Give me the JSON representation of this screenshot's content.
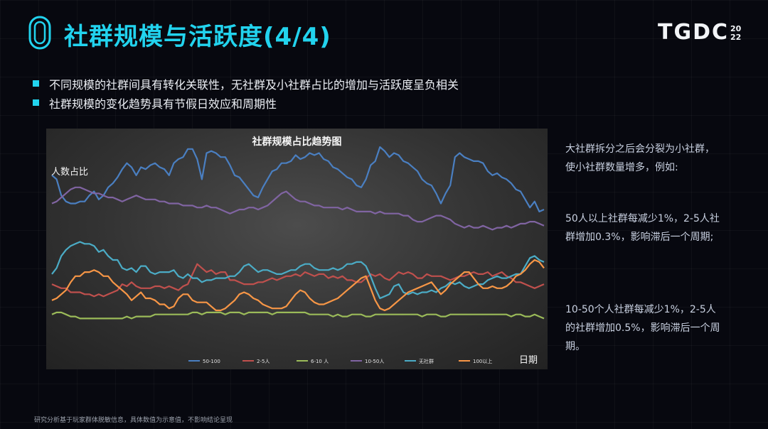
{
  "slide": {
    "title": "社群规模与活跃度(4/4)",
    "logo_text": "TGDC",
    "logo_year_top": "20",
    "logo_year_bottom": "22",
    "bullets": [
      "不同规模的社群间具有转化关联性，无社群及小社群占比的增加与活跃度呈负相关",
      "社群规模的变化趋势具有节假日效应和周期性"
    ],
    "side_notes": [
      "大社群拆分之后会分裂为小社群，使小社群数量增多，例如:",
      "50人以上社群每减少1%，2-5人社群增加0.3%，影响滞后一个周期;",
      "10-50个人社群每减少1%，2-5人的社群增加0.5%，影响滞后一个周期。"
    ],
    "footer": "研究分析基于玩家群体脱敏信息，具体数值为示意值，不影响结论呈现"
  },
  "chart_data": {
    "type": "line",
    "title": "社群规模占比趋势图",
    "ylabel": "人数占比",
    "xlabel": "日期",
    "ylim": [
      0,
      100
    ],
    "grid": false,
    "legend_position": "bottom",
    "series": [
      {
        "name": "50-100",
        "color": "#4a7fc1",
        "values": [
          86,
          84,
          76,
          73,
          72,
          72,
          73,
          73,
          76,
          78,
          74,
          76,
          80,
          82,
          85,
          89,
          92,
          90,
          86,
          90,
          89,
          91,
          92,
          90,
          89,
          86,
          92,
          94,
          95,
          99,
          99,
          94,
          84,
          97,
          98,
          97,
          95,
          95,
          91,
          86,
          85,
          82,
          79,
          76,
          75,
          80,
          84,
          88,
          89,
          92,
          92,
          93,
          96,
          94,
          95,
          97,
          96,
          97,
          94,
          93,
          90,
          89,
          87,
          85,
          84,
          81,
          80,
          84,
          91,
          93,
          100,
          98,
          95,
          97,
          96,
          93,
          92,
          90,
          88,
          84,
          82,
          81,
          77,
          72,
          77,
          81,
          95,
          97,
          95,
          94,
          93,
          93,
          92,
          88,
          86,
          87,
          85,
          84,
          82,
          79,
          78,
          74,
          70,
          73,
          68,
          69
        ]
      },
      {
        "name": "2-5人",
        "color": "#c0504d",
        "values": [
          32,
          31,
          30,
          30,
          28,
          28,
          28,
          27,
          27,
          26,
          27,
          26,
          27,
          28,
          29,
          32,
          31,
          33,
          31,
          30,
          30,
          30,
          31,
          31,
          30,
          31,
          30,
          29,
          31,
          32,
          37,
          42,
          40,
          38,
          39,
          37,
          38,
          38,
          34,
          34,
          33,
          32,
          32,
          32,
          33,
          33,
          34,
          35,
          34,
          35,
          36,
          36,
          37,
          36,
          38,
          37,
          36,
          37,
          37,
          35,
          36,
          35,
          36,
          34,
          34,
          33,
          33,
          35,
          37,
          36,
          37,
          35,
          34,
          36,
          38,
          37,
          38,
          37,
          35,
          35,
          37,
          36,
          36,
          36,
          35,
          34,
          35,
          36,
          36,
          37,
          38,
          37,
          37,
          38,
          36,
          37,
          38,
          36,
          35,
          33,
          33,
          32,
          31,
          30,
          31,
          32
        ]
      },
      {
        "name": "6-10 人",
        "color": "#9bbb59",
        "values": [
          17,
          18,
          18,
          17,
          16,
          16,
          15,
          15,
          15,
          15,
          15,
          15,
          15,
          15,
          15,
          15,
          16,
          15,
          16,
          16,
          16,
          16,
          17,
          17,
          17,
          17,
          17,
          17,
          17,
          17,
          18,
          18,
          17,
          18,
          18,
          18,
          18,
          17,
          18,
          18,
          18,
          17,
          18,
          18,
          18,
          18,
          18,
          17,
          18,
          18,
          18,
          18,
          18,
          18,
          18,
          17,
          17,
          17,
          17,
          17,
          16,
          17,
          16,
          16,
          17,
          17,
          17,
          16,
          16,
          17,
          17,
          17,
          17,
          17,
          17,
          17,
          17,
          17,
          17,
          16,
          17,
          17,
          17,
          16,
          16,
          17,
          17,
          17,
          17,
          17,
          17,
          17,
          17,
          17,
          17,
          17,
          17,
          17,
          16,
          17,
          17,
          16,
          16,
          17,
          16,
          15
        ]
      },
      {
        "name": "10-50人",
        "color": "#8064a2",
        "values": [
          72,
          73,
          75,
          77,
          79,
          80,
          80,
          79,
          78,
          77,
          77,
          76,
          75,
          75,
          74,
          73,
          74,
          75,
          76,
          75,
          74,
          74,
          74,
          73,
          73,
          72,
          72,
          72,
          71,
          71,
          71,
          70,
          70,
          71,
          70,
          70,
          69,
          68,
          67,
          68,
          69,
          69,
          70,
          70,
          69,
          70,
          71,
          73,
          75,
          77,
          78,
          76,
          74,
          73,
          73,
          72,
          71,
          71,
          70,
          70,
          70,
          70,
          69,
          70,
          69,
          68,
          68,
          68,
          68,
          67,
          68,
          67,
          67,
          67,
          67,
          66,
          66,
          64,
          63,
          63,
          64,
          65,
          66,
          66,
          65,
          64,
          62,
          61,
          60,
          61,
          60,
          60,
          61,
          60,
          59,
          60,
          60,
          61,
          60,
          61,
          62,
          62,
          63,
          63,
          62,
          61
        ]
      },
      {
        "name": "无社群",
        "color": "#4bacc6",
        "values": [
          37,
          40,
          46,
          49,
          51,
          52,
          53,
          52,
          52,
          51,
          48,
          49,
          46,
          44,
          44,
          40,
          39,
          40,
          38,
          41,
          41,
          38,
          37,
          38,
          38,
          38,
          39,
          36,
          35,
          37,
          35,
          35,
          33,
          34,
          34,
          35,
          35,
          35,
          36,
          36,
          38,
          41,
          42,
          40,
          38,
          39,
          39,
          38,
          37,
          37,
          38,
          39,
          39,
          41,
          42,
          42,
          40,
          39,
          39,
          39,
          40,
          39,
          40,
          42,
          42,
          43,
          43,
          41,
          36,
          30,
          25,
          26,
          27,
          31,
          32,
          28,
          27,
          28,
          27,
          28,
          28,
          29,
          28,
          30,
          31,
          33,
          32,
          33,
          31,
          30,
          31,
          32,
          32,
          34,
          35,
          36,
          35,
          35,
          36,
          37,
          37,
          41,
          45,
          46,
          44,
          43
        ]
      },
      {
        "name": "100以上",
        "color": "#f79646",
        "values": [
          24,
          25,
          27,
          29,
          33,
          36,
          36,
          38,
          38,
          39,
          38,
          36,
          36,
          33,
          31,
          29,
          27,
          24,
          26,
          28,
          25,
          25,
          24,
          22,
          22,
          20,
          21,
          25,
          27,
          27,
          24,
          23,
          23,
          23,
          21,
          19,
          19,
          20,
          22,
          24,
          27,
          28,
          27,
          25,
          24,
          22,
          21,
          20,
          20,
          20,
          21,
          24,
          27,
          29,
          28,
          25,
          23,
          22,
          22,
          23,
          24,
          25,
          27,
          29,
          31,
          33,
          35,
          36,
          30,
          24,
          20,
          19,
          20,
          22,
          24,
          26,
          28,
          29,
          30,
          31,
          32,
          33,
          30,
          27,
          29,
          32,
          34,
          36,
          38,
          38,
          35,
          32,
          30,
          30,
          31,
          30,
          30,
          31,
          33,
          36,
          37,
          39,
          42,
          44,
          43,
          40
        ]
      }
    ]
  }
}
